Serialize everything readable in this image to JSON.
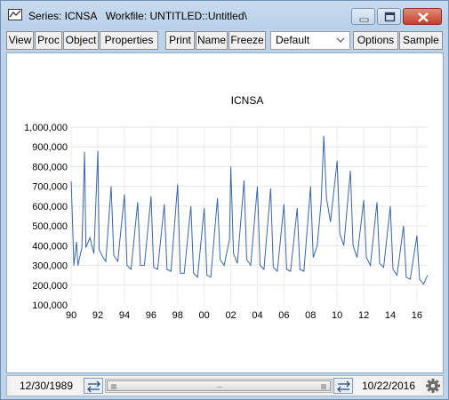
{
  "window": {
    "title": "Series: ICNSA   Workfile: UNTITLED::Untitled\\",
    "icon": "chart-window-icon"
  },
  "toolbar": {
    "buttons": [
      "View",
      "Proc",
      "Object",
      "Properties",
      "Print",
      "Name",
      "Freeze",
      "Options",
      "Sample"
    ],
    "view_select": "Default"
  },
  "chart_data": {
    "type": "line",
    "title": "ICNSA",
    "xlabel": "",
    "ylabel": "",
    "x_tick_labels": [
      "90",
      "92",
      "94",
      "96",
      "98",
      "00",
      "02",
      "04",
      "06",
      "08",
      "10",
      "12",
      "14",
      "16"
    ],
    "y_tick_labels": [
      "100,000",
      "200,000",
      "300,000",
      "400,000",
      "500,000",
      "600,000",
      "700,000",
      "800,000",
      "900,000",
      "1,000,000"
    ],
    "ylim": [
      100000,
      1000000
    ],
    "xlim": [
      1989.99,
      2016.81
    ],
    "grid": true,
    "line_color": "#3a66a8",
    "series": [
      {
        "x": [
          1990.0,
          1990.2,
          1990.4,
          1990.5,
          1990.8,
          1991.0,
          1991.1,
          1991.4,
          1991.7,
          1992.0,
          1992.1,
          1992.4,
          1992.6,
          1993.0,
          1993.2,
          1993.5,
          1994.0,
          1994.2,
          1994.5,
          1995.0,
          1995.2,
          1995.5,
          1996.0,
          1996.2,
          1996.5,
          1997.0,
          1997.2,
          1997.5,
          1998.0,
          1998.2,
          1998.5,
          1999.0,
          1999.2,
          1999.5,
          2000.0,
          2000.2,
          2000.5,
          2001.0,
          2001.2,
          2001.5,
          2001.9,
          2002.0,
          2002.2,
          2002.5,
          2003.0,
          2003.2,
          2003.5,
          2004.0,
          2004.2,
          2004.5,
          2005.0,
          2005.2,
          2005.5,
          2006.0,
          2006.2,
          2006.5,
          2007.0,
          2007.2,
          2007.5,
          2008.0,
          2008.2,
          2008.5,
          2008.8,
          2009.0,
          2009.2,
          2009.5,
          2010.0,
          2010.2,
          2010.5,
          2011.0,
          2011.2,
          2011.5,
          2012.0,
          2012.2,
          2012.5,
          2013.0,
          2013.2,
          2013.5,
          2014.0,
          2014.2,
          2014.5,
          2015.0,
          2015.2,
          2015.5,
          2016.0,
          2016.2,
          2016.5,
          2016.8
        ],
        "y": [
          725000,
          300000,
          420000,
          300000,
          390000,
          875000,
          390000,
          440000,
          360000,
          880000,
          380000,
          340000,
          320000,
          700000,
          350000,
          320000,
          660000,
          300000,
          280000,
          620000,
          300000,
          300000,
          650000,
          290000,
          280000,
          610000,
          280000,
          270000,
          710000,
          260000,
          260000,
          600000,
          260000,
          240000,
          590000,
          250000,
          240000,
          640000,
          330000,
          300000,
          430000,
          800000,
          360000,
          310000,
          730000,
          330000,
          300000,
          700000,
          300000,
          280000,
          690000,
          290000,
          270000,
          610000,
          280000,
          270000,
          590000,
          280000,
          270000,
          700000,
          340000,
          400000,
          620000,
          955000,
          640000,
          520000,
          830000,
          460000,
          400000,
          780000,
          400000,
          340000,
          630000,
          340000,
          300000,
          620000,
          310000,
          290000,
          600000,
          280000,
          250000,
          500000,
          240000,
          230000,
          450000,
          230000,
          205000,
          250000
        ]
      }
    ]
  },
  "statusbar": {
    "start_date": "12/30/1989",
    "end_date": "10/22/2016"
  }
}
